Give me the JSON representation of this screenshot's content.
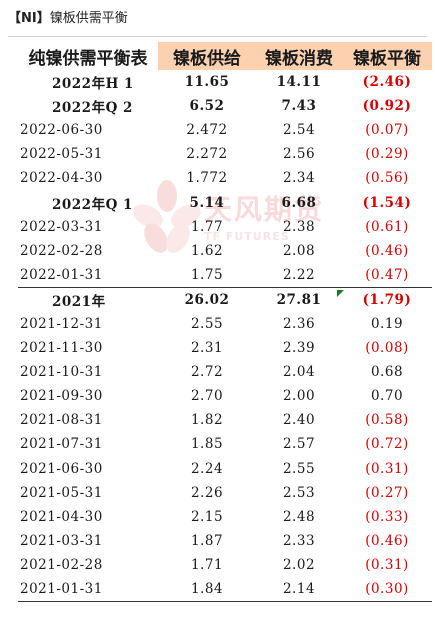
{
  "title": {
    "tag": "【NI】",
    "text": "镍板供需平衡"
  },
  "watermark": {
    "cn": "天风期货",
    "en": "TF FUTURES"
  },
  "colors": {
    "header_fill": "#fbd1b0",
    "negative": "#d40000"
  },
  "table": {
    "headers": [
      "纯镍供需平衡表",
      "镍板供给",
      "镍板消费",
      "镍板平衡"
    ],
    "rows": [
      {
        "period": "2022年H 1",
        "supply": "11.65",
        "consumption": "14.11",
        "balance": "(2.46)",
        "bold": true,
        "negative": true
      },
      {
        "period": "2022年Q 2",
        "supply": "6.52",
        "consumption": "7.43",
        "balance": "(0.92)",
        "bold": true,
        "negative": true
      },
      {
        "period": "2022-06-30",
        "supply": "2.472",
        "consumption": "2.54",
        "balance": "(0.07)",
        "bold": false,
        "negative": true
      },
      {
        "period": "2022-05-31",
        "supply": "2.272",
        "consumption": "2.56",
        "balance": "(0.29)",
        "bold": false,
        "negative": true
      },
      {
        "period": "2022-04-30",
        "supply": "1.772",
        "consumption": "2.34",
        "balance": "(0.56)",
        "bold": false,
        "negative": true
      },
      {
        "period": "2022年Q 1",
        "supply": "5.14",
        "consumption": "6.68",
        "balance": "(1.54)",
        "bold": true,
        "negative": true
      },
      {
        "period": "2022-03-31",
        "supply": "1.77",
        "consumption": "2.38",
        "balance": "(0.61)",
        "bold": false,
        "negative": true
      },
      {
        "period": "2022-02-28",
        "supply": "1.62",
        "consumption": "2.08",
        "balance": "(0.46)",
        "bold": false,
        "negative": true
      },
      {
        "period": "2022-01-31",
        "supply": "1.75",
        "consumption": "2.22",
        "balance": "(0.47)",
        "bold": false,
        "negative": true
      },
      {
        "period": "2021年",
        "supply": "26.02",
        "consumption": "27.81",
        "balance": "(1.79)",
        "bold": true,
        "negative": true,
        "separator": true
      },
      {
        "period": "2021-12-31",
        "supply": "2.55",
        "consumption": "2.36",
        "balance": "0.19",
        "bold": false,
        "negative": false
      },
      {
        "period": "2021-11-30",
        "supply": "2.31",
        "consumption": "2.39",
        "balance": "(0.08)",
        "bold": false,
        "negative": true
      },
      {
        "period": "2021-10-31",
        "supply": "2.72",
        "consumption": "2.04",
        "balance": "0.68",
        "bold": false,
        "negative": false
      },
      {
        "period": "2021-09-30",
        "supply": "2.70",
        "consumption": "2.00",
        "balance": "0.70",
        "bold": false,
        "negative": false
      },
      {
        "period": "2021-08-31",
        "supply": "1.82",
        "consumption": "2.40",
        "balance": "(0.58)",
        "bold": false,
        "negative": true
      },
      {
        "period": "2021-07-31",
        "supply": "1.85",
        "consumption": "2.57",
        "balance": "(0.72)",
        "bold": false,
        "negative": true
      },
      {
        "period": "2021-06-30",
        "supply": "2.24",
        "consumption": "2.55",
        "balance": "(0.31)",
        "bold": false,
        "negative": true
      },
      {
        "period": "2021-05-31",
        "supply": "2.26",
        "consumption": "2.53",
        "balance": "(0.27)",
        "bold": false,
        "negative": true
      },
      {
        "period": "2021-04-30",
        "supply": "2.15",
        "consumption": "2.48",
        "balance": "(0.33)",
        "bold": false,
        "negative": true
      },
      {
        "period": "2021-03-31",
        "supply": "1.87",
        "consumption": "2.33",
        "balance": "(0.46)",
        "bold": false,
        "negative": true
      },
      {
        "period": "2021-02-28",
        "supply": "1.71",
        "consumption": "2.02",
        "balance": "(0.31)",
        "bold": false,
        "negative": true
      },
      {
        "period": "2021-01-31",
        "supply": "1.84",
        "consumption": "2.14",
        "balance": "(0.30)",
        "bold": false,
        "negative": true
      }
    ]
  }
}
